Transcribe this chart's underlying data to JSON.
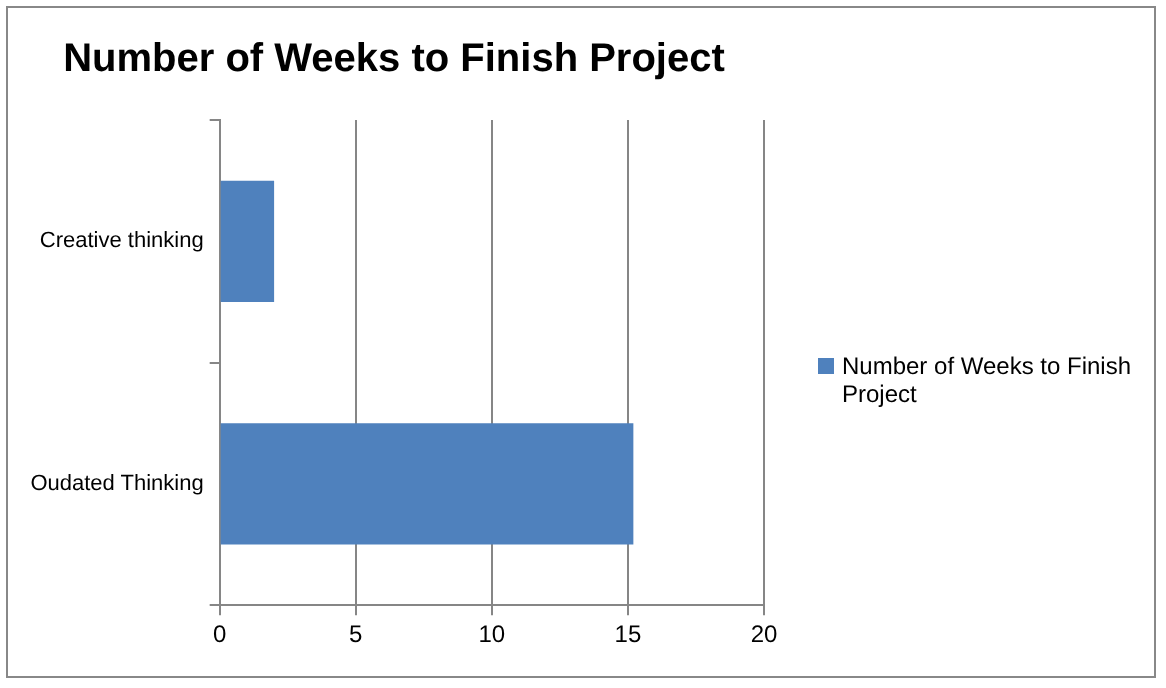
{
  "chart_data": {
    "type": "bar",
    "orientation": "horizontal",
    "title": "Number of Weeks to Finish Project",
    "categories": [
      "Creative thinking",
      "Oudated Thinking"
    ],
    "series": [
      {
        "name": "Number of Weeks to Finish Project",
        "color": "#4f81bd",
        "values": [
          2,
          15.2
        ]
      }
    ],
    "xlim": [
      0,
      20
    ],
    "xticks": [
      0,
      5,
      10,
      15,
      20
    ],
    "grid": "x",
    "legend": "right"
  }
}
